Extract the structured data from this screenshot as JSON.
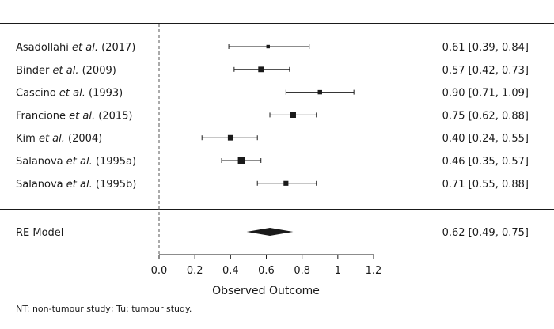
{
  "chart_data": {
    "type": "forest",
    "xlabel": "Observed Outcome",
    "xlim": [
      0,
      1.2
    ],
    "x_ticks": [
      "0.0",
      "0.2",
      "0.4",
      "0.6",
      "0.8",
      "1",
      "1.2"
    ],
    "x_tick_values": [
      0,
      0.2,
      0.4,
      0.6,
      0.8,
      1.0,
      1.2
    ],
    "reference_line": 0,
    "studies": [
      {
        "author": "Asadollahi",
        "etal": " et al.",
        "year": " (2017)",
        "estimate": 0.61,
        "lower": 0.39,
        "upper": 0.84,
        "weight": 0.2,
        "ci_text": "0.61 [0.39, 0.84]"
      },
      {
        "author": "Binder",
        "etal": " et al.",
        "year": " (2009)",
        "estimate": 0.57,
        "lower": 0.42,
        "upper": 0.73,
        "weight": 0.55,
        "ci_text": "0.57 [0.42, 0.73]"
      },
      {
        "author": "Cascino",
        "etal": " et al.",
        "year": " (1993)",
        "estimate": 0.9,
        "lower": 0.71,
        "upper": 1.09,
        "weight": 0.35,
        "ci_text": "0.90 [0.71, 1.09]"
      },
      {
        "author": "Francione",
        "etal": " et al.",
        "year": " (2015)",
        "estimate": 0.75,
        "lower": 0.62,
        "upper": 0.88,
        "weight": 0.6,
        "ci_text": "0.75 [0.62, 0.88]"
      },
      {
        "author": "Kim",
        "etal": " et al.",
        "year": " (2004)",
        "estimate": 0.4,
        "lower": 0.24,
        "upper": 0.55,
        "weight": 0.55,
        "ci_text": "0.40 [0.24, 0.55]"
      },
      {
        "author": "Salanova",
        "etal": " et al.",
        "year": " (1995a)",
        "estimate": 0.46,
        "lower": 0.35,
        "upper": 0.57,
        "weight": 0.8,
        "ci_text": "0.46 [0.35, 0.57]"
      },
      {
        "author": "Salanova",
        "etal": " et al.",
        "year": " (1995b)",
        "estimate": 0.71,
        "lower": 0.55,
        "upper": 0.88,
        "weight": 0.45,
        "ci_text": "0.71 [0.55, 0.88]"
      }
    ],
    "summary": {
      "label": "RE Model",
      "estimate": 0.62,
      "lower": 0.49,
      "upper": 0.75,
      "ci_text": "0.62 [0.49, 0.75]"
    },
    "colors": {
      "ink": "#1a1a1a",
      "dash": "#555555"
    }
  },
  "footnote": "NT: non-tumour study; Tu: tumour study."
}
